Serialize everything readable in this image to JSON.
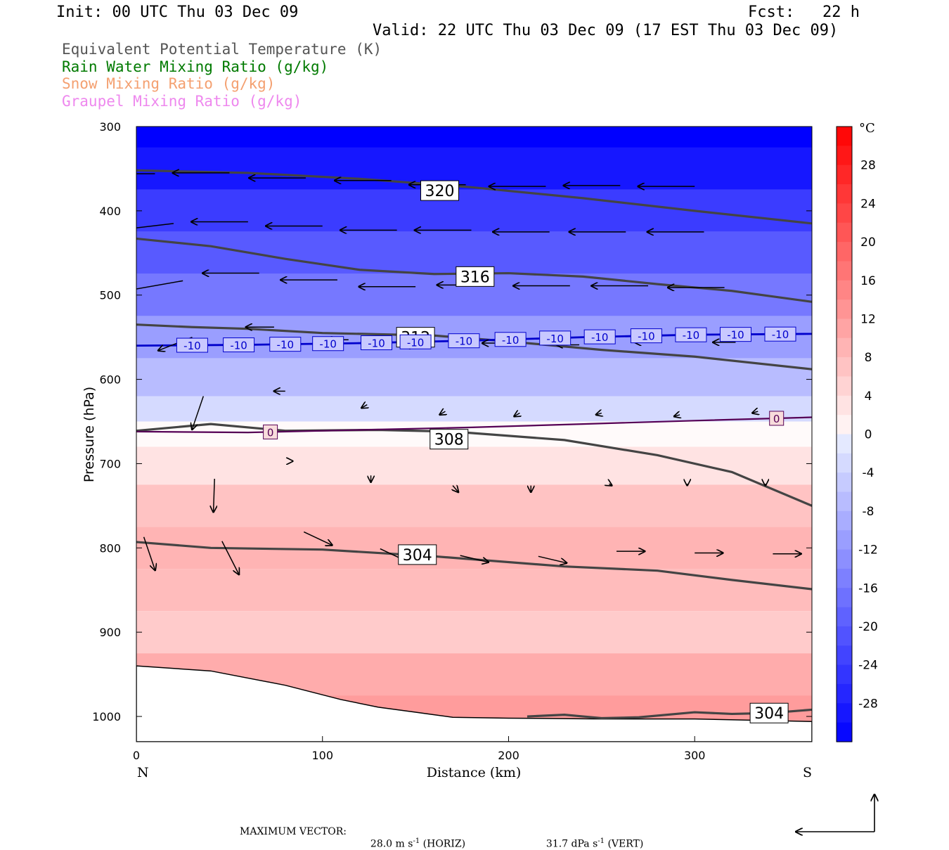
{
  "header": {
    "init": "Init: 00 UTC Thu 03 Dec 09",
    "fcst": "Fcst:   22 h",
    "valid": "Valid: 22 UTC Thu 03 Dec 09 (17 EST Thu 03 Dec 09)"
  },
  "legend": [
    {
      "label": "Equivalent Potential Temperature (K)",
      "color": "#555555"
    },
    {
      "label": "Rain Water Mixing Ratio (g/kg)",
      "color": "#007a00"
    },
    {
      "label": "Snow Mixing Ratio (g/kg)",
      "color": "#f4a070"
    },
    {
      "label": "Graupel Mixing Ratio (g/kg)",
      "color": "#ee88ee"
    }
  ],
  "footer": {
    "max_vector_label": "MAXIMUM VECTOR:",
    "horiz_value": "28.0 m s",
    "horiz_unit": "(HORIZ)",
    "vert_value": "31.7 dPa s",
    "vert_unit": "(VERT)",
    "exponent": "-1"
  },
  "chart_data": {
    "type": "cross-section",
    "xlabel": "Distance (km)",
    "ylabel": "Pressure (hPa)",
    "xlim": [
      0,
      363
    ],
    "ylim": [
      1030,
      300
    ],
    "x_ticks": [
      0,
      100,
      200,
      300
    ],
    "y_ticks": [
      300,
      400,
      500,
      600,
      700,
      800,
      900,
      1000
    ],
    "x_end_labels": {
      "left": "N",
      "right": "S"
    },
    "colorbar": {
      "unit": "°C",
      "tick_labels": [
        "28",
        "24",
        "20",
        "16",
        "12",
        "8",
        "4",
        "0",
        "-4",
        "-8",
        "-12",
        "-16",
        "-20",
        "-24",
        "-28"
      ],
      "range": [
        -32,
        32
      ]
    },
    "theta_e_contours": [
      {
        "label": "320",
        "label_at": [
          163,
          376
        ],
        "points": [
          [
            0,
            352
          ],
          [
            60,
            355
          ],
          [
            120,
            362
          ],
          [
            180,
            372
          ],
          [
            240,
            385
          ],
          [
            300,
            400
          ],
          [
            363,
            415
          ]
        ]
      },
      {
        "label": "316",
        "label_at": [
          182,
          478
        ],
        "points": [
          [
            0,
            433
          ],
          [
            40,
            442
          ],
          [
            80,
            457
          ],
          [
            120,
            470
          ],
          [
            160,
            475
          ],
          [
            200,
            474
          ],
          [
            240,
            478
          ],
          [
            280,
            487
          ],
          [
            320,
            495
          ],
          [
            363,
            508
          ]
        ]
      },
      {
        "label": "312",
        "label_at": [
          150,
          550
        ],
        "points": [
          [
            0,
            535
          ],
          [
            30,
            538
          ],
          [
            60,
            540
          ],
          [
            100,
            545
          ],
          [
            160,
            548
          ],
          [
            200,
            555
          ],
          [
            250,
            565
          ],
          [
            300,
            573
          ],
          [
            363,
            588
          ]
        ]
      },
      {
        "label": "308",
        "label_at": [
          168,
          671
        ],
        "points": [
          [
            0,
            661
          ],
          [
            40,
            653
          ],
          [
            80,
            661
          ],
          [
            130,
            660
          ],
          [
            170,
            662
          ],
          [
            230,
            672
          ],
          [
            280,
            690
          ],
          [
            320,
            710
          ],
          [
            363,
            750
          ]
        ]
      },
      {
        "label": "304",
        "label_at": [
          151,
          808
        ],
        "points": [
          [
            0,
            793
          ],
          [
            40,
            800
          ],
          [
            100,
            802
          ],
          [
            160,
            810
          ],
          [
            230,
            822
          ],
          [
            280,
            827
          ],
          [
            320,
            838
          ],
          [
            363,
            849
          ]
        ]
      },
      {
        "label": "304",
        "label_at": [
          340,
          996
        ],
        "points": [
          [
            210,
            1000
          ],
          [
            230,
            998
          ],
          [
            250,
            1002
          ],
          [
            270,
            1001
          ],
          [
            300,
            995
          ],
          [
            320,
            997
          ],
          [
            340,
            996
          ],
          [
            363,
            992
          ]
        ]
      }
    ],
    "isotherms": [
      {
        "value": -10,
        "color": "#0000cc",
        "label": "-10",
        "label_xs": [
          30,
          55,
          80,
          103,
          129,
          150,
          176,
          201,
          225,
          249,
          274,
          298,
          322,
          346
        ],
        "points": [
          [
            0,
            560
          ],
          [
            60,
            559
          ],
          [
            120,
            557
          ],
          [
            180,
            554
          ],
          [
            240,
            550
          ],
          [
            300,
            547
          ],
          [
            363,
            546
          ]
        ]
      },
      {
        "value": 0,
        "color": "#550055",
        "label": "0",
        "label_xs": [
          72,
          344
        ],
        "points": [
          [
            0,
            662
          ],
          [
            60,
            663
          ],
          [
            120,
            660
          ],
          [
            180,
            657
          ],
          [
            240,
            653
          ],
          [
            300,
            649
          ],
          [
            363,
            645
          ]
        ]
      }
    ],
    "surface_pressure": [
      [
        0,
        940
      ],
      [
        40,
        946
      ],
      [
        80,
        963
      ],
      [
        110,
        980
      ],
      [
        130,
        989
      ],
      [
        150,
        995
      ],
      [
        170,
        1001
      ],
      [
        200,
        1002
      ],
      [
        250,
        1003
      ],
      [
        300,
        1003
      ],
      [
        363,
        1006
      ]
    ],
    "temperature_levels": [
      {
        "p": 300,
        "t": -34
      },
      {
        "p": 350,
        "t": -29
      },
      {
        "p": 400,
        "t": -24
      },
      {
        "p": 450,
        "t": -20
      },
      {
        "p": 500,
        "t": -16
      },
      {
        "p": 550,
        "t": -11
      },
      {
        "p": 600,
        "t": -7
      },
      {
        "p": 640,
        "t": -3
      },
      {
        "p": 660,
        "t": 0
      },
      {
        "p": 700,
        "t": 3
      },
      {
        "p": 750,
        "t": 7
      },
      {
        "p": 800,
        "t": 9
      },
      {
        "p": 850,
        "t": 8
      },
      {
        "p": 900,
        "t": 6
      },
      {
        "p": 950,
        "t": 10
      },
      {
        "p": 1000,
        "t": 12
      }
    ],
    "wind_vectors": [
      {
        "x": 10,
        "p": 356,
        "u": -1,
        "v": 0
      },
      {
        "x": 50,
        "p": 355,
        "u": -1,
        "v": 0
      },
      {
        "x": 91,
        "p": 361,
        "u": -1,
        "v": 0
      },
      {
        "x": 137,
        "p": 364,
        "u": -1,
        "v": 0
      },
      {
        "x": 177,
        "p": 369,
        "u": -1,
        "v": 0
      },
      {
        "x": 220,
        "p": 371,
        "u": -1,
        "v": 0
      },
      {
        "x": 260,
        "p": 370,
        "u": -1,
        "v": 0
      },
      {
        "x": 300,
        "p": 371,
        "u": -1,
        "v": 0
      },
      {
        "x": 20,
        "p": 415,
        "u": -1,
        "v": 0.2
      },
      {
        "x": 60,
        "p": 413,
        "u": -1,
        "v": 0
      },
      {
        "x": 100,
        "p": 418,
        "u": -1,
        "v": 0
      },
      {
        "x": 140,
        "p": 423,
        "u": -1,
        "v": 0
      },
      {
        "x": 180,
        "p": 423,
        "u": -1,
        "v": 0
      },
      {
        "x": 222,
        "p": 425,
        "u": -1,
        "v": 0
      },
      {
        "x": 263,
        "p": 425,
        "u": -1,
        "v": 0
      },
      {
        "x": 305,
        "p": 425,
        "u": -1,
        "v": 0
      },
      {
        "x": 25,
        "p": 483,
        "u": -1,
        "v": 0.3
      },
      {
        "x": 66,
        "p": 474,
        "u": -1,
        "v": 0
      },
      {
        "x": 108,
        "p": 482,
        "u": -1,
        "v": 0
      },
      {
        "x": 150,
        "p": 490,
        "u": -1,
        "v": 0
      },
      {
        "x": 192,
        "p": 488,
        "u": -1,
        "v": 0
      },
      {
        "x": 233,
        "p": 489,
        "u": -1,
        "v": 0
      },
      {
        "x": 275,
        "p": 489,
        "u": -1,
        "v": 0
      },
      {
        "x": 316,
        "p": 491,
        "u": -1,
        "v": 0
      },
      {
        "x": 30,
        "p": 550,
        "u": -0.6,
        "v": 0.4
      },
      {
        "x": 74,
        "p": 538,
        "u": -0.5,
        "v": 0
      },
      {
        "x": 114,
        "p": 553,
        "u": -0.4,
        "v": 0
      },
      {
        "x": 156,
        "p": 560,
        "u": -0.4,
        "v": 0
      },
      {
        "x": 198,
        "p": 557,
        "u": -0.4,
        "v": 0
      },
      {
        "x": 238,
        "p": 559,
        "u": -0.4,
        "v": 0
      },
      {
        "x": 280,
        "p": 556,
        "u": -0.4,
        "v": 0
      },
      {
        "x": 322,
        "p": 556,
        "u": -0.4,
        "v": 0
      },
      {
        "x": 36,
        "p": 620,
        "u": -0.2,
        "v": 1
      },
      {
        "x": 80,
        "p": 614,
        "u": -0.2,
        "v": 0
      },
      {
        "x": 124,
        "p": 630,
        "u": -0.1,
        "v": 0.1
      },
      {
        "x": 166,
        "p": 638,
        "u": -0.1,
        "v": 0.1
      },
      {
        "x": 206,
        "p": 640,
        "u": -0.1,
        "v": 0.1
      },
      {
        "x": 250,
        "p": 640,
        "u": -0.1,
        "v": 0.05
      },
      {
        "x": 292,
        "p": 642,
        "u": -0.1,
        "v": 0.05
      },
      {
        "x": 334,
        "p": 638,
        "u": -0.1,
        "v": 0.05
      },
      {
        "x": 42,
        "p": 718,
        "u": -0.02,
        "v": 1
      },
      {
        "x": 84,
        "p": 697,
        "u": 0,
        "v": 0
      },
      {
        "x": 126,
        "p": 714,
        "u": 0,
        "v": 0.2
      },
      {
        "x": 170,
        "p": 726,
        "u": 0.1,
        "v": 0.2
      },
      {
        "x": 212,
        "p": 726,
        "u": 0,
        "v": 0.2
      },
      {
        "x": 254,
        "p": 724,
        "u": 0.05,
        "v": 0.05
      },
      {
        "x": 296,
        "p": 724,
        "u": 0,
        "v": 0.05
      },
      {
        "x": 338,
        "p": 724,
        "u": 0,
        "v": 0.05
      },
      {
        "x": 4,
        "p": 787,
        "u": 0.2,
        "v": 1
      },
      {
        "x": 46,
        "p": 792,
        "u": 0.3,
        "v": 1
      },
      {
        "x": 90,
        "p": 781,
        "u": 0.5,
        "v": 0.4
      },
      {
        "x": 131,
        "p": 801,
        "u": 0.5,
        "v": 0.4
      },
      {
        "x": 174,
        "p": 809,
        "u": 0.5,
        "v": 0.2
      },
      {
        "x": 216,
        "p": 810,
        "u": 0.5,
        "v": 0.2
      },
      {
        "x": 258,
        "p": 804,
        "u": 0.5,
        "v": 0
      },
      {
        "x": 300,
        "p": 806,
        "u": 0.5,
        "v": 0
      },
      {
        "x": 342,
        "p": 807,
        "u": 0.5,
        "v": 0
      }
    ]
  }
}
